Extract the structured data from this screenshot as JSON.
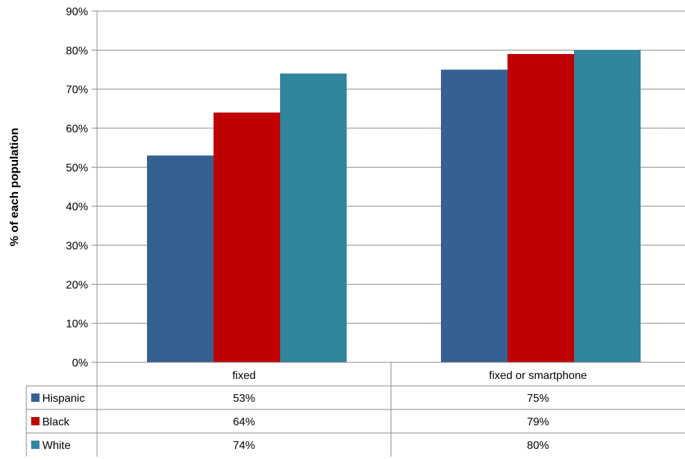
{
  "chart_data": {
    "type": "bar",
    "title": "",
    "xlabel": "",
    "ylabel": "% of each population",
    "ylim": [
      0,
      90
    ],
    "y_ticks": [
      "0%",
      "10%",
      "20%",
      "30%",
      "40%",
      "50%",
      "60%",
      "70%",
      "80%",
      "90%"
    ],
    "grid": true,
    "legend": "data-table",
    "categories": [
      "fixed",
      "fixed or smartphone"
    ],
    "series": [
      {
        "name": "Hispanic",
        "color": "#376092",
        "values": [
          53,
          75
        ],
        "labels": [
          "53%",
          "75%"
        ]
      },
      {
        "name": "Black",
        "color": "#C00000",
        "values": [
          64,
          79
        ],
        "labels": [
          "64%",
          "79%"
        ]
      },
      {
        "name": "White",
        "color": "#31859C",
        "values": [
          74,
          80
        ],
        "labels": [
          "74%",
          "80%"
        ]
      }
    ]
  }
}
